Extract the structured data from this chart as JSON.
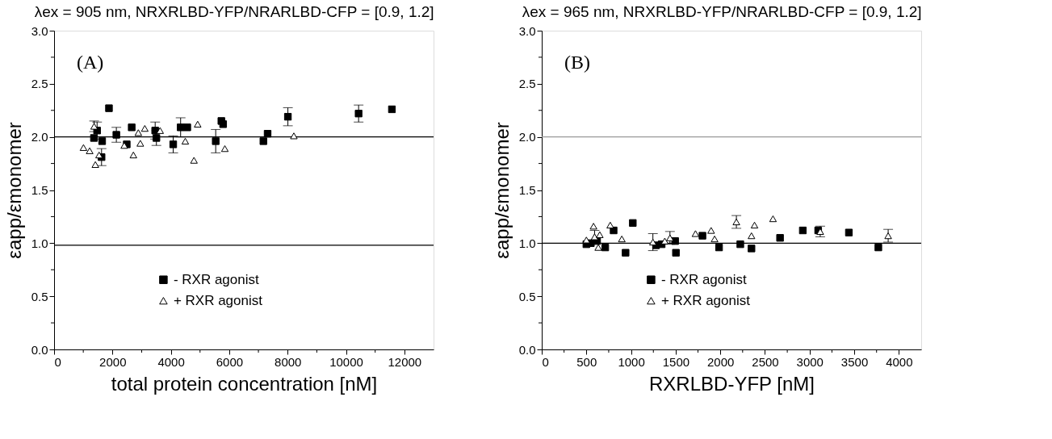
{
  "chart_data": [
    {
      "type": "scatter",
      "title": "λex = 905 nm,  NRXRLBD-YFP/NRARLBD-CFP = [0.9, 1.2]",
      "xlabel": "total protein concentration [nM]",
      "ylabel": "εapp/εmonomer",
      "annotations": [
        "(A)"
      ],
      "series": [
        {
          "name": "- RXR agonist",
          "color": "#000000",
          "marker": "square",
          "x": [
            1880,
            1473,
            1365,
            1646,
            1626,
            2133,
            2489,
            2659,
            3463,
            3505,
            4081,
            4335,
            4563,
            5537,
            5731,
            5791,
            7171,
            7315,
            8010,
            10432,
            11573
          ],
          "values": [
            2.27,
            2.06,
            1.99,
            1.96,
            1.81,
            2.02,
            1.93,
            2.09,
            2.06,
            1.99,
            1.93,
            2.09,
            2.09,
            1.96,
            2.15,
            2.12,
            1.96,
            2.03,
            2.19,
            2.22,
            2.26
          ],
          "errors": [
            null,
            0.08,
            null,
            null,
            0.08,
            0.07,
            null,
            null,
            0.08,
            0.07,
            0.08,
            0.09,
            null,
            0.11,
            null,
            null,
            null,
            null,
            0.085,
            0.08,
            null
          ]
        },
        {
          "name": "+ RXR agonist",
          "color": "#000000",
          "marker": "triangle",
          "x": [
            1007,
            1219,
            1371,
            1541,
            1414,
            2404,
            2717,
            2886,
            2954,
            3107,
            3632,
            4495,
            4792,
            4919,
            5850,
            8214
          ],
          "values": [
            1.9,
            1.87,
            2.1,
            1.83,
            1.74,
            1.92,
            1.83,
            2.04,
            1.94,
            2.08,
            2.06,
            1.96,
            1.78,
            2.12,
            1.89,
            2.01
          ],
          "errors": [
            null,
            null,
            0.05,
            null,
            null,
            null,
            null,
            null,
            null,
            null,
            null,
            null,
            null,
            null,
            null,
            null
          ]
        }
      ],
      "ref_lines": [
        {
          "axis": "y",
          "value": 2.0,
          "color": "#000000"
        },
        {
          "axis": "y",
          "value": 0.98,
          "color": "#000000"
        }
      ],
      "xlim": [
        0,
        13000
      ],
      "xticks": [
        0,
        {
          "value": 1000,
          "label": null
        },
        2000,
        {
          "value": 3000,
          "label": null
        },
        4000,
        {
          "value": 5000,
          "label": null
        },
        6000,
        {
          "value": 7000,
          "label": null
        },
        8000,
        {
          "value": 9000,
          "label": null
        },
        10000,
        {
          "value": 11000,
          "label": null
        },
        12000
      ],
      "ylim": [
        0,
        3
      ],
      "yticks": [
        {
          "value": 0,
          "label": "0.0"
        },
        {
          "value": 0.25,
          "label": null
        },
        {
          "value": 0.5,
          "label": "0.5"
        },
        {
          "value": 0.75,
          "label": null
        },
        {
          "value": 1,
          "label": "1.0"
        },
        {
          "value": 1.25,
          "label": null
        },
        {
          "value": 1.5,
          "label": "1.5"
        },
        {
          "value": 1.75,
          "label": null
        },
        {
          "value": 2,
          "label": "2.0"
        },
        {
          "value": 2.25,
          "label": null
        },
        {
          "value": 2.5,
          "label": "2.5"
        },
        {
          "value": 2.75,
          "label": null
        },
        {
          "value": 3,
          "label": "3.0"
        }
      ],
      "grid": false,
      "legend": "bottom"
    },
    {
      "type": "scatter",
      "title": "λex = 965 nm,  NRXRLBD-YFP/NRARLBD-CFP = [0.9, 1.2]",
      "xlabel": "RXRLBD-YFP [nM]",
      "ylabel": "εapp/εmonomer",
      "annotations": [
        "(B)"
      ],
      "series": [
        {
          "name": "- RXR agonist",
          "color": "#000000",
          "marker": "square",
          "x": [
            500,
            550,
            620,
            711,
            805,
            939,
            1020,
            1280,
            1343,
            1494,
            1503,
            1800,
            1986,
            2224,
            2349,
            2669,
            2924,
            3096,
            3440,
            3770
          ],
          "values": [
            0.99,
            1.0,
            1.02,
            0.96,
            1.12,
            0.91,
            1.19,
            0.98,
            0.99,
            1.02,
            0.91,
            1.07,
            0.96,
            0.99,
            0.95,
            1.05,
            1.12,
            1.12,
            1.1,
            0.96
          ]
        },
        {
          "name": "+ RXR agonist",
          "color": "#000000",
          "marker": "triangle",
          "x": [
            500,
            580,
            592,
            650,
            633,
            767,
            897,
            1245,
            1378,
            1436,
            1722,
            1897,
            1936,
            2180,
            2349,
            2383,
            2590,
            3119,
            3880
          ],
          "values": [
            1.03,
            1.16,
            1.06,
            1.08,
            0.96,
            1.17,
            1.04,
            1.01,
            1.02,
            1.05,
            1.09,
            1.12,
            1.04,
            1.2,
            1.07,
            1.17,
            1.23,
            1.11,
            1.07
          ],
          "errors": [
            null,
            null,
            0.06,
            null,
            null,
            null,
            null,
            0.08,
            null,
            0.06,
            null,
            null,
            null,
            0.06,
            null,
            null,
            null,
            0.05,
            0.06
          ]
        }
      ],
      "ref_lines": [
        {
          "axis": "y",
          "value": 2.0,
          "color": "#999999"
        },
        {
          "axis": "y",
          "value": 1.0,
          "color": "#000000"
        }
      ],
      "xlim": [
        0,
        4250
      ],
      "xticks": [
        0,
        {
          "value": 250,
          "label": null
        },
        500,
        {
          "value": 750,
          "label": null
        },
        1000,
        {
          "value": 1250,
          "label": null
        },
        1500,
        {
          "value": 1750,
          "label": null
        },
        2000,
        {
          "value": 2250,
          "label": null
        },
        2500,
        {
          "value": 2750,
          "label": null
        },
        3000,
        {
          "value": 3250,
          "label": null
        },
        3500,
        {
          "value": 3750,
          "label": null
        },
        4000
      ],
      "ylim": [
        0,
        3
      ],
      "yticks": [
        {
          "value": 0,
          "label": "0.0"
        },
        {
          "value": 0.25,
          "label": null
        },
        {
          "value": 0.5,
          "label": "0.5"
        },
        {
          "value": 0.75,
          "label": null
        },
        {
          "value": 1,
          "label": "1.0"
        },
        {
          "value": 1.25,
          "label": null
        },
        {
          "value": 1.5,
          "label": "1.5"
        },
        {
          "value": 1.75,
          "label": null
        },
        {
          "value": 2,
          "label": "2.0"
        },
        {
          "value": 2.25,
          "label": null
        },
        {
          "value": 2.5,
          "label": "2.5"
        },
        {
          "value": 2.75,
          "label": null
        },
        {
          "value": 3,
          "label": "3.0"
        }
      ],
      "grid": false,
      "legend": "bottom"
    }
  ]
}
